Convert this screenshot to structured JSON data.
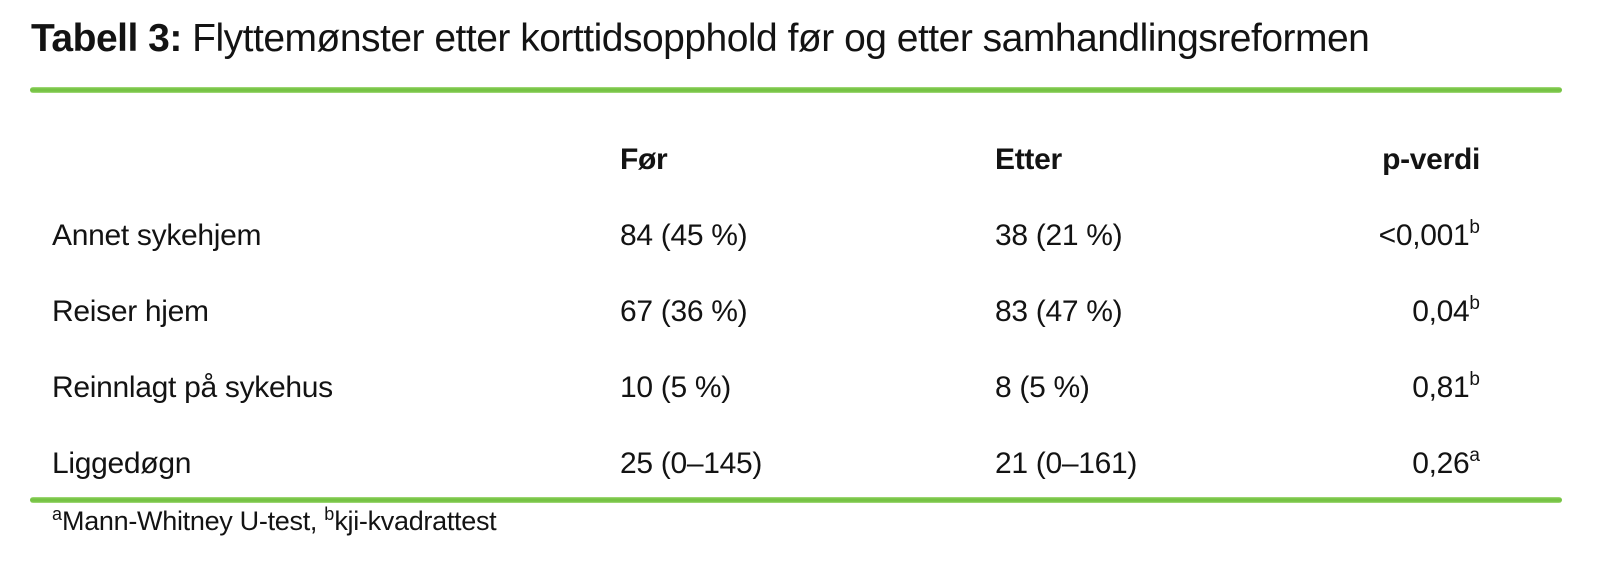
{
  "title": {
    "label": "Tabell 3:",
    "text": "Flyttemønster etter korttidsopphold før og etter samhandlingsreformen"
  },
  "table": {
    "columns": {
      "before": "Før",
      "after": "Etter",
      "pvalue": "p-verdi"
    },
    "rows": [
      {
        "label": "Annet sykehjem",
        "before": "84 (45 %)",
        "after": "38 (21 %)",
        "p": "<0,001",
        "p_sup": "b"
      },
      {
        "label": "Reiser hjem",
        "before": "67 (36 %)",
        "after": "83 (47 %)",
        "p": "0,04",
        "p_sup": "b"
      },
      {
        "label": "Reinnlagt på sykehus",
        "before": "10 (5 %)",
        "after": "8 (5 %)",
        "p": "0,81",
        "p_sup": "b"
      },
      {
        "label": "Liggedøgn",
        "before": "25 (0–145)",
        "after": "21 (0–161)",
        "p": "0,26",
        "p_sup": "a"
      }
    ]
  },
  "footnote": {
    "sup_a": "a",
    "text_a": "Mann-Whitney U-test,",
    "sup_b": "b",
    "text_b": "kji-kvadrattest"
  },
  "colors": {
    "rule_green": "#76c344",
    "text": "#131313"
  }
}
